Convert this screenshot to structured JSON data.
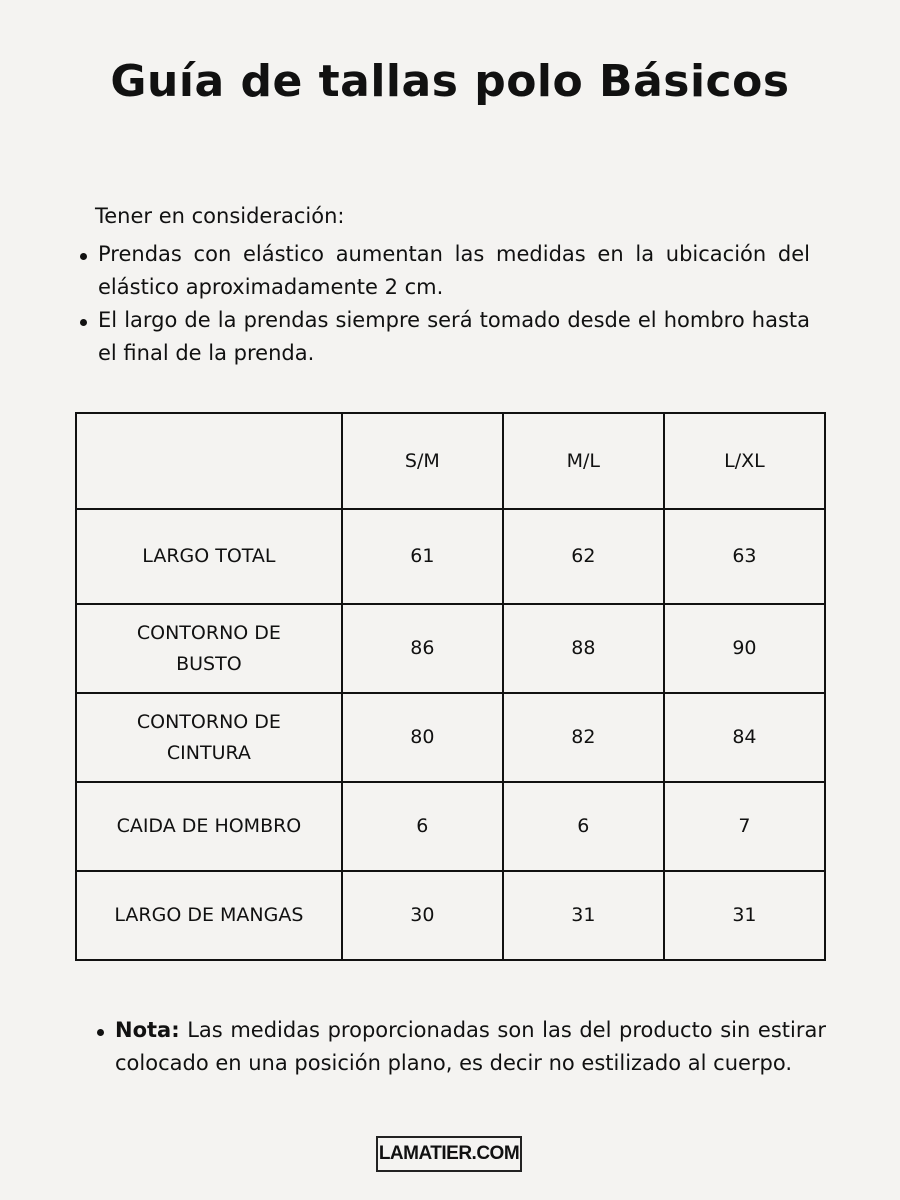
{
  "title": "Guía de tallas polo Básicos",
  "intro": "Tener en consideración:",
  "bullets": [
    "Prendas con elástico aumentan las medidas en la ubicación del elástico aproximadamente 2 cm.",
    "El largo de la prendas siempre será tomado desde el hombro hasta el final de la prenda."
  ],
  "table": {
    "headers": [
      "",
      "S/M",
      "M/L",
      "L/XL"
    ],
    "rows": [
      {
        "label": "LARGO TOTAL",
        "values": [
          "61",
          "62",
          "63"
        ]
      },
      {
        "label": "CONTORNO DE BUSTO",
        "values": [
          "86",
          "88",
          "90"
        ]
      },
      {
        "label": "CONTORNO DE CINTURA",
        "values": [
          "80",
          "82",
          "84"
        ]
      },
      {
        "label": "CAIDA DE HOMBRO",
        "values": [
          "6",
          "6",
          "7"
        ]
      },
      {
        "label": "LARGO DE MANGAS",
        "values": [
          "30",
          "31",
          "31"
        ]
      }
    ]
  },
  "note": {
    "label": "Nota:",
    "text": " Las medidas proporcionadas son las del producto sin estirar colocado en una posición plano, es decir no estilizado al cuerpo."
  },
  "logo": "LAMATIER.COM"
}
